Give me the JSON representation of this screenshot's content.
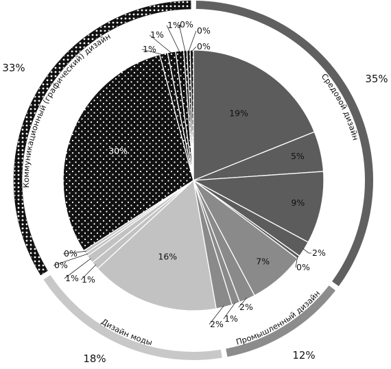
{
  "chart_data": {
    "type": "pie",
    "inner_slices": [
      {
        "group": "sredovoy",
        "value": 19,
        "label": "19%",
        "color": "#5c5c5c"
      },
      {
        "group": "sredovoy",
        "value": 5,
        "label": "5%",
        "color": "#5c5c5c"
      },
      {
        "group": "sredovoy",
        "value": 9,
        "label": "9%",
        "color": "#5c5c5c"
      },
      {
        "group": "sredovoy",
        "value": 2,
        "label": "2%",
        "color": "#5c5c5c"
      },
      {
        "group": "sredovoy",
        "value": 0.4,
        "label": "0%",
        "color": "#5c5c5c"
      },
      {
        "group": "prom",
        "value": 7,
        "label": "7%",
        "color": "#8a8a8a"
      },
      {
        "group": "prom",
        "value": 2,
        "label": "2%",
        "color": "#8a8a8a"
      },
      {
        "group": "prom",
        "value": 1,
        "label": "1%",
        "color": "#8a8a8a"
      },
      {
        "group": "prom",
        "value": 2,
        "label": "2%",
        "color": "#8a8a8a"
      },
      {
        "group": "moda",
        "value": 16,
        "label": "16%",
        "color": "#c2c2c2"
      },
      {
        "group": "moda",
        "value": 1,
        "label": "1%",
        "color": "#c2c2c2"
      },
      {
        "group": "moda",
        "value": 1,
        "label": "1%",
        "color": "#c2c2c2"
      },
      {
        "group": "moda",
        "value": 0.4,
        "label": "0%",
        "color": "#c2c2c2"
      },
      {
        "group": "moda",
        "value": 0.4,
        "label": "0%",
        "color": "#c2c2c2"
      },
      {
        "group": "komm",
        "value": 30,
        "label": "30%",
        "color": "#111111"
      },
      {
        "group": "komm",
        "value": 1,
        "label": "1%",
        "color": "#111111"
      },
      {
        "group": "komm",
        "value": 1,
        "label": "1%",
        "color": "#111111"
      },
      {
        "group": "komm",
        "value": 1,
        "label": "1%",
        "color": "#111111"
      },
      {
        "group": "komm",
        "value": 0.4,
        "label": "0%",
        "color": "#111111"
      },
      {
        "group": "komm",
        "value": 0.4,
        "label": "0%",
        "color": "#111111"
      },
      {
        "group": "komm",
        "value": 0.4,
        "label": "0%",
        "color": "#111111"
      }
    ],
    "outer_groups": [
      {
        "key": "sredovoy",
        "name": "Средовой дизайн",
        "value": 35,
        "label": "35%",
        "color": "#606060"
      },
      {
        "key": "prom",
        "name": "Промышленный дизайн",
        "value": 12,
        "label": "12%",
        "color": "#8c8c8c"
      },
      {
        "key": "moda",
        "name": "Дизайн моды",
        "value": 18,
        "label": "18%",
        "color": "#c8c8c8"
      },
      {
        "key": "komm",
        "name": "Коммуникационный (графический) дизайн",
        "value": 33,
        "label": "33%",
        "color": "#111111"
      }
    ],
    "dotted_group": "komm"
  }
}
